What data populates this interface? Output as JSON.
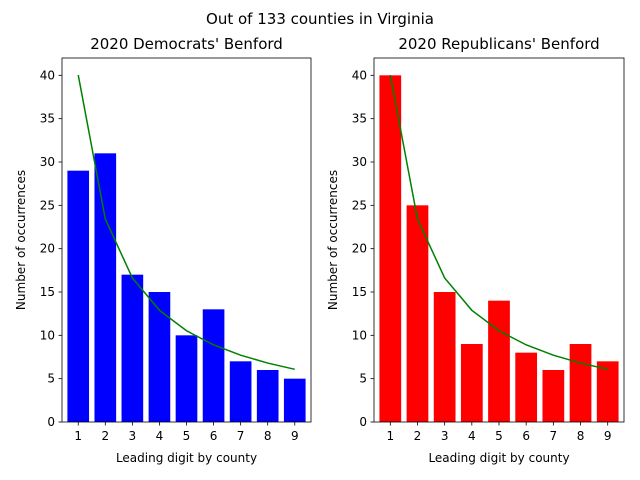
{
  "figure": {
    "suptitle": "Out of 133 counties in Virginia"
  },
  "chart_data": [
    {
      "type": "bar",
      "title": "2020 Democrats' Benford",
      "xlabel": "Leading digit by county",
      "ylabel": "Number of occurrences",
      "categories": [
        "1",
        "2",
        "3",
        "4",
        "5",
        "6",
        "7",
        "8",
        "9"
      ],
      "values": [
        29,
        31,
        17,
        15,
        10,
        13,
        7,
        6,
        5
      ],
      "bar_color": "#0000ff",
      "line": {
        "color": "#008000",
        "values": [
          40.04,
          23.42,
          16.62,
          12.89,
          10.53,
          8.9,
          7.71,
          6.8,
          6.08
        ]
      },
      "ylim": [
        0,
        42
      ],
      "yticks": [
        0,
        5,
        10,
        15,
        20,
        25,
        30,
        35,
        40
      ],
      "grid": false
    },
    {
      "type": "bar",
      "title": "2020 Republicans' Benford",
      "xlabel": "Leading digit by county",
      "ylabel": "Number of occurrences",
      "categories": [
        "1",
        "2",
        "3",
        "4",
        "5",
        "6",
        "7",
        "8",
        "9"
      ],
      "values": [
        40,
        25,
        15,
        9,
        14,
        8,
        6,
        9,
        7
      ],
      "bar_color": "#ff0000",
      "line": {
        "color": "#008000",
        "values": [
          40.04,
          23.42,
          16.62,
          12.89,
          10.53,
          8.9,
          7.71,
          6.8,
          6.08
        ]
      },
      "ylim": [
        0,
        42
      ],
      "yticks": [
        0,
        5,
        10,
        15,
        20,
        25,
        30,
        35,
        40
      ],
      "grid": false
    }
  ]
}
